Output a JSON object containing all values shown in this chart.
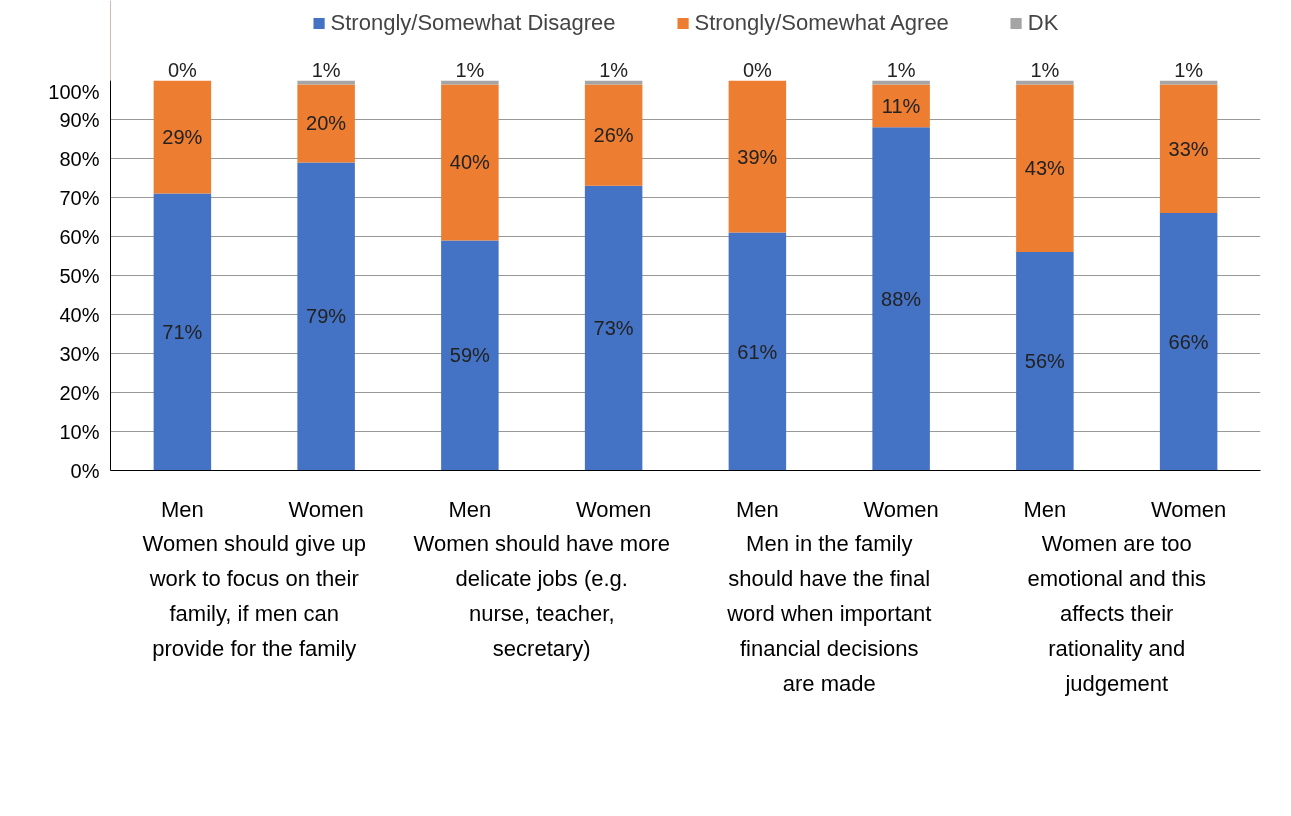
{
  "chart_data": {
    "type": "bar",
    "stacked": true,
    "legend": "top",
    "grid": "y",
    "categories": [
      "Men",
      "Women",
      "Men",
      "Women",
      "Men",
      "Women",
      "Men",
      "Women"
    ],
    "annotations": [
      "Women should give up work to focus on their family, if men can provide for the family",
      "Women should have more delicate jobs (e.g. nurse, teacher, secretary)",
      "Men in the family should have the final word when important financial decisions are made",
      "Women are too emotional and this affects their rationality and judgement"
    ],
    "ylim": [
      0,
      100
    ],
    "yticks": [
      {
        "value": 0,
        "label": "0%"
      },
      {
        "value": 10,
        "label": "10%"
      },
      {
        "value": 20,
        "label": "20%"
      },
      {
        "value": 30,
        "label": "30%"
      },
      {
        "value": 40,
        "label": "40%"
      },
      {
        "value": 50,
        "label": "50%"
      },
      {
        "value": 60,
        "label": "60%"
      },
      {
        "value": 70,
        "label": "70%"
      },
      {
        "value": 80,
        "label": "80%"
      },
      {
        "value": 90,
        "label": "90%"
      },
      {
        "value": 100,
        "label": "100%"
      }
    ],
    "series": [
      {
        "name": "Strongly/Somewhat Disagree",
        "color": "#4472c4",
        "values": [
          71,
          79,
          59,
          73,
          61,
          88,
          56,
          66
        ],
        "value_labels": [
          "71%",
          "79%",
          "59%",
          "73%",
          "61%",
          "88%",
          "56%",
          "66%"
        ]
      },
      {
        "name": "Strongly/Somewhat Agree",
        "color": "#ed7d31",
        "values": [
          29,
          20,
          40,
          26,
          39,
          11,
          43,
          33
        ],
        "value_labels": [
          "29%",
          "20%",
          "40%",
          "26%",
          "39%",
          "11%",
          "43%",
          "33%"
        ]
      },
      {
        "name": "DK",
        "color": "#a5a5a5",
        "values": [
          0,
          1,
          1,
          1,
          0,
          1,
          1,
          1
        ],
        "value_labels": [
          "0%",
          "1%",
          "1%",
          "1%",
          "0%",
          "1%",
          "1%",
          "1%"
        ]
      }
    ]
  }
}
